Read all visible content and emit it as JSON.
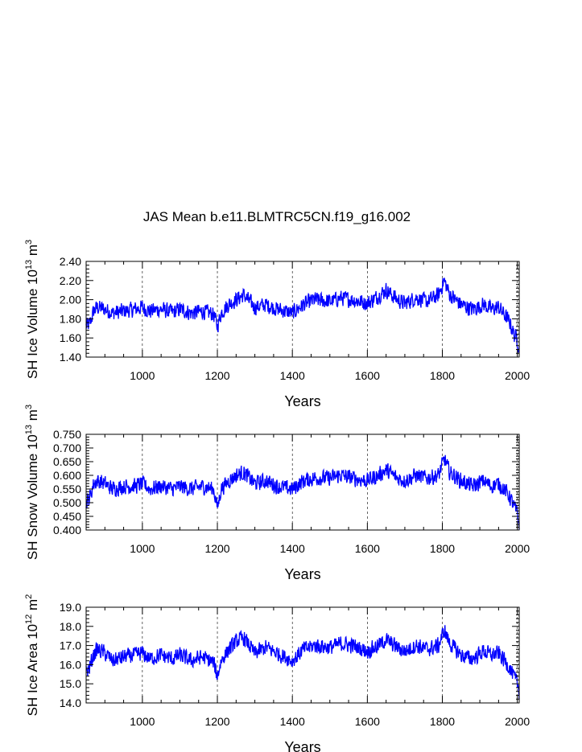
{
  "title": "JAS Mean b.e11.BLMTRC5CN.f19_g16.002",
  "colors": {
    "series": "#0000ff",
    "axis": "#000000",
    "grid": "#000000"
  },
  "chart_data": [
    {
      "type": "line",
      "xlabel": "Years",
      "ylabel_prefix": "SH Ice Volume 10",
      "ylabel_exp": "13",
      "ylabel_unit": "m",
      "ylabel_unit_exp": "3",
      "xlim": [
        850,
        2005
      ],
      "ylim": [
        1.4,
        2.4
      ],
      "xticks": [
        1000,
        1200,
        1400,
        1600,
        1800,
        2000
      ],
      "yticks": [
        "1.40",
        "1.60",
        "1.80",
        "2.00",
        "2.20",
        "2.40"
      ],
      "grid": "vertical-dashed",
      "series": [
        {
          "name": "SH Ice Volume",
          "x": [
            850,
            860,
            870,
            880,
            900,
            920,
            950,
            980,
            1000,
            1020,
            1050,
            1080,
            1100,
            1130,
            1160,
            1190,
            1200,
            1210,
            1230,
            1250,
            1270,
            1300,
            1330,
            1360,
            1400,
            1430,
            1460,
            1500,
            1530,
            1560,
            1600,
            1630,
            1650,
            1680,
            1700,
            1730,
            1760,
            1790,
            1805,
            1820,
            1850,
            1880,
            1910,
            1930,
            1950,
            1970,
            1980,
            1990,
            2000,
            2005
          ],
          "values": [
            1.72,
            1.75,
            1.88,
            1.92,
            1.9,
            1.86,
            1.88,
            1.9,
            1.92,
            1.88,
            1.9,
            1.87,
            1.9,
            1.86,
            1.88,
            1.85,
            1.72,
            1.86,
            1.95,
            2.0,
            2.05,
            1.92,
            1.95,
            1.9,
            1.86,
            1.95,
            2.0,
            1.98,
            2.02,
            2.0,
            1.96,
            2.04,
            2.1,
            2.0,
            1.96,
            2.02,
            1.98,
            2.05,
            2.2,
            2.05,
            1.95,
            1.9,
            1.95,
            1.9,
            1.92,
            1.82,
            1.76,
            1.65,
            1.58,
            1.48
          ]
        }
      ]
    },
    {
      "type": "line",
      "xlabel": "Years",
      "ylabel_prefix": "SH Snow Volume 10",
      "ylabel_exp": "13",
      "ylabel_unit": "m",
      "ylabel_unit_exp": "3",
      "xlim": [
        850,
        2005
      ],
      "ylim": [
        0.4,
        0.75
      ],
      "xticks": [
        1000,
        1200,
        1400,
        1600,
        1800,
        2000
      ],
      "yticks": [
        "0.400",
        "0.450",
        "0.500",
        "0.550",
        "0.600",
        "0.650",
        "0.700",
        "0.750"
      ],
      "grid": "vertical-dashed",
      "series": [
        {
          "name": "SH Snow Volume",
          "x": [
            850,
            860,
            870,
            880,
            900,
            920,
            950,
            980,
            1000,
            1020,
            1050,
            1080,
            1100,
            1130,
            1160,
            1190,
            1200,
            1210,
            1230,
            1250,
            1270,
            1300,
            1330,
            1360,
            1400,
            1430,
            1460,
            1500,
            1530,
            1560,
            1600,
            1630,
            1650,
            1680,
            1700,
            1730,
            1760,
            1790,
            1805,
            1820,
            1850,
            1880,
            1910,
            1930,
            1950,
            1970,
            1980,
            1990,
            2000,
            2005
          ],
          "values": [
            0.5,
            0.52,
            0.57,
            0.58,
            0.57,
            0.55,
            0.56,
            0.56,
            0.57,
            0.55,
            0.56,
            0.55,
            0.56,
            0.55,
            0.56,
            0.55,
            0.48,
            0.55,
            0.58,
            0.6,
            0.61,
            0.57,
            0.58,
            0.56,
            0.55,
            0.58,
            0.59,
            0.59,
            0.6,
            0.59,
            0.58,
            0.6,
            0.62,
            0.59,
            0.58,
            0.6,
            0.59,
            0.6,
            0.66,
            0.61,
            0.58,
            0.56,
            0.58,
            0.56,
            0.57,
            0.54,
            0.52,
            0.49,
            0.46,
            0.42
          ]
        }
      ]
    },
    {
      "type": "line",
      "xlabel": "Years",
      "ylabel_prefix": "SH Ice Area 10",
      "ylabel_exp": "12",
      "ylabel_unit": "m",
      "ylabel_unit_exp": "2",
      "xlim": [
        850,
        2005
      ],
      "ylim": [
        14.0,
        19.0
      ],
      "xticks": [
        1000,
        1200,
        1400,
        1600,
        1800,
        2000
      ],
      "yticks": [
        "14.0",
        "15.0",
        "16.0",
        "17.0",
        "18.0",
        "19.0"
      ],
      "grid": "vertical-dashed",
      "series": [
        {
          "name": "SH Ice Area",
          "x": [
            850,
            860,
            870,
            880,
            900,
            920,
            950,
            980,
            1000,
            1020,
            1050,
            1080,
            1100,
            1130,
            1160,
            1190,
            1200,
            1210,
            1230,
            1250,
            1270,
            1300,
            1330,
            1360,
            1400,
            1430,
            1460,
            1500,
            1530,
            1560,
            1600,
            1630,
            1650,
            1680,
            1700,
            1730,
            1760,
            1790,
            1805,
            1820,
            1850,
            1880,
            1910,
            1930,
            1950,
            1970,
            1980,
            1990,
            2000,
            2005
          ],
          "values": [
            15.6,
            15.9,
            16.5,
            16.8,
            16.6,
            16.2,
            16.4,
            16.5,
            16.6,
            16.3,
            16.5,
            16.3,
            16.5,
            16.2,
            16.4,
            16.1,
            15.4,
            16.2,
            16.8,
            17.2,
            17.4,
            16.6,
            16.9,
            16.6,
            16.2,
            16.8,
            17.0,
            16.9,
            17.1,
            17.0,
            16.7,
            17.0,
            17.3,
            16.9,
            16.7,
            17.0,
            16.8,
            17.0,
            17.8,
            17.1,
            16.5,
            16.3,
            16.7,
            16.5,
            16.6,
            16.1,
            15.8,
            15.4,
            15.0,
            14.6
          ]
        }
      ]
    }
  ]
}
